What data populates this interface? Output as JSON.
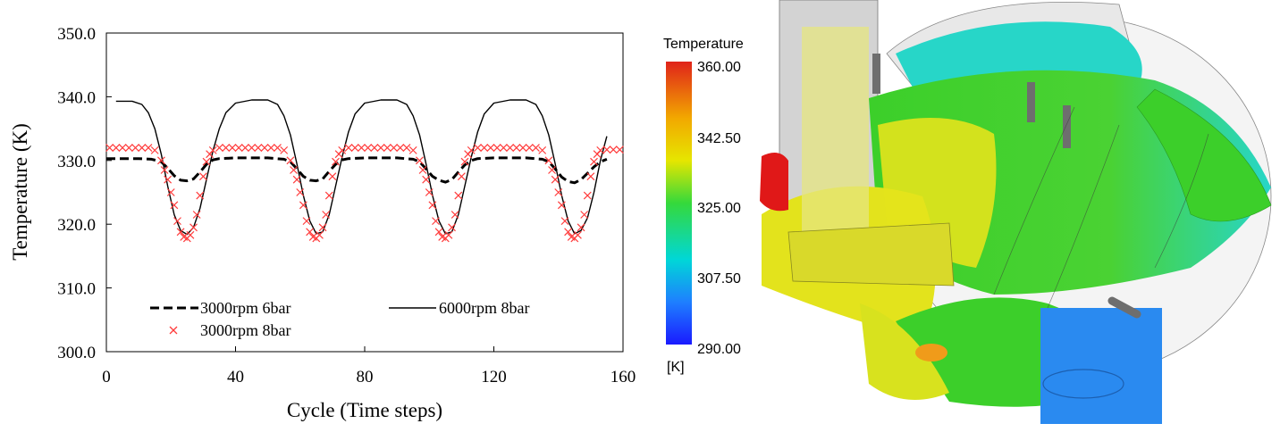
{
  "chart_data": {
    "type": "line",
    "title": "",
    "xlabel": "Cycle (Time steps)",
    "ylabel": "Temperature (K)",
    "xlim": [
      0,
      160
    ],
    "ylim": [
      300,
      350
    ],
    "x_ticks": [
      "0",
      "40",
      "80",
      "120",
      "160"
    ],
    "y_ticks": [
      "300.0",
      "310.0",
      "320.0",
      "330.0",
      "340.0",
      "350.0"
    ],
    "grid": false,
    "legend_position": "bottom",
    "series": [
      {
        "name": "3000rpm 6bar",
        "style": "dashed",
        "color": "#000000",
        "x": [
          0,
          5,
          10,
          14,
          17,
          19,
          21,
          23,
          25,
          27,
          29,
          31,
          33,
          35,
          40,
          50,
          55,
          57,
          59,
          61,
          63,
          65,
          67,
          69,
          71,
          73,
          75,
          80,
          90,
          95,
          97,
          99,
          101,
          103,
          105,
          107,
          109,
          111,
          113,
          115,
          120,
          130,
          135,
          137,
          139,
          141,
          143,
          145,
          147,
          149,
          151,
          153,
          155
        ],
        "y": [
          330.3,
          330.3,
          330.3,
          330.2,
          329.8,
          328.8,
          327.6,
          326.9,
          326.8,
          327.1,
          328.2,
          329.4,
          330.1,
          330.3,
          330.4,
          330.4,
          330.2,
          329.8,
          328.7,
          327.5,
          326.9,
          326.8,
          327.1,
          328.3,
          329.4,
          330.1,
          330.3,
          330.4,
          330.4,
          330.2,
          329.8,
          328.7,
          327.5,
          326.9,
          326.6,
          327.0,
          328.2,
          329.3,
          330.0,
          330.3,
          330.4,
          330.4,
          330.2,
          329.8,
          328.7,
          327.4,
          326.7,
          326.5,
          327.0,
          328.0,
          329.0,
          329.8,
          330.2
        ]
      },
      {
        "name": "6000rpm 8bar",
        "style": "solid",
        "color": "#000000",
        "x": [
          3,
          8,
          11,
          13,
          15,
          17,
          19,
          21,
          23,
          25,
          27,
          29,
          31,
          33,
          35,
          37,
          40,
          45,
          50,
          53,
          55,
          57,
          59,
          61,
          63,
          65,
          67,
          69,
          71,
          73,
          75,
          77,
          80,
          85,
          90,
          93,
          95,
          97,
          99,
          101,
          103,
          105,
          107,
          109,
          111,
          113,
          115,
          117,
          120,
          125,
          130,
          133,
          135,
          137,
          139,
          141,
          143,
          145,
          147,
          149,
          151,
          153,
          155
        ],
        "y": [
          339.3,
          339.3,
          338.8,
          337.5,
          335.0,
          331.0,
          326.0,
          321.5,
          319.0,
          318.4,
          319.5,
          322.5,
          327.0,
          331.5,
          335.0,
          337.5,
          339.0,
          339.5,
          339.5,
          338.8,
          337.0,
          334.0,
          329.5,
          324.5,
          320.5,
          318.5,
          318.8,
          321.5,
          326.0,
          330.5,
          334.5,
          337.3,
          339.0,
          339.5,
          339.5,
          338.8,
          337.0,
          334.0,
          329.5,
          324.5,
          320.5,
          318.5,
          318.8,
          321.5,
          326.0,
          330.5,
          334.5,
          337.3,
          339.0,
          339.5,
          339.5,
          338.8,
          337.0,
          334.0,
          329.5,
          324.5,
          320.5,
          318.5,
          319.0,
          321.0,
          325.0,
          330.0,
          333.8
        ]
      },
      {
        "name": "3000rpm 8bar",
        "style": "markers-x",
        "color": "#ff3b3b",
        "x": [
          1,
          3,
          5,
          7,
          9,
          11,
          13,
          15,
          17,
          18,
          19,
          20,
          21,
          22,
          23,
          24,
          25,
          26,
          27,
          28,
          29,
          30,
          31,
          32,
          33,
          35,
          37,
          39,
          41,
          43,
          45,
          47,
          49,
          51,
          53,
          55,
          57,
          58,
          59,
          60,
          61,
          62,
          63,
          64,
          65,
          66,
          67,
          68,
          69,
          70,
          71,
          72,
          73,
          75,
          77,
          79,
          81,
          83,
          85,
          87,
          89,
          91,
          93,
          95,
          97,
          98,
          99,
          100,
          101,
          102,
          103,
          104,
          105,
          106,
          107,
          108,
          109,
          110,
          111,
          112,
          113,
          115,
          117,
          119,
          121,
          123,
          125,
          127,
          129,
          131,
          133,
          135,
          137,
          138,
          139,
          140,
          141,
          142,
          143,
          144,
          145,
          146,
          147,
          148,
          149,
          150,
          151,
          152,
          153,
          155,
          157,
          159
        ],
        "y": [
          332.0,
          332.0,
          332.0,
          332.0,
          332.0,
          332.0,
          332.0,
          331.6,
          330.0,
          328.5,
          327.0,
          325.0,
          323.0,
          320.5,
          318.8,
          318.0,
          317.8,
          318.3,
          319.5,
          321.5,
          324.5,
          327.5,
          329.8,
          331.0,
          331.6,
          332.0,
          332.0,
          332.0,
          332.0,
          332.0,
          332.0,
          332.0,
          332.0,
          332.0,
          332.0,
          331.6,
          330.0,
          328.5,
          327.0,
          325.0,
          323.0,
          320.5,
          318.8,
          318.0,
          317.8,
          318.3,
          319.5,
          321.5,
          324.5,
          327.5,
          329.8,
          331.0,
          331.6,
          332.0,
          332.0,
          332.0,
          332.0,
          332.0,
          332.0,
          332.0,
          332.0,
          332.0,
          332.0,
          331.6,
          330.0,
          328.5,
          327.0,
          325.0,
          323.0,
          320.5,
          318.8,
          318.0,
          317.8,
          318.3,
          319.5,
          321.5,
          324.5,
          327.5,
          329.8,
          331.0,
          331.6,
          332.0,
          332.0,
          332.0,
          332.0,
          332.0,
          332.0,
          332.0,
          332.0,
          332.0,
          332.0,
          331.6,
          330.0,
          328.5,
          327.0,
          325.0,
          323.0,
          320.5,
          318.8,
          318.0,
          317.8,
          318.3,
          319.5,
          321.5,
          324.5,
          327.5,
          329.8,
          331.0,
          331.6,
          331.7,
          331.7,
          331.7
        ]
      }
    ]
  },
  "colorbar": {
    "title": "Temperature",
    "unit": "[K]",
    "labels": [
      "360.00",
      "342.50",
      "325.00",
      "307.50",
      "290.00"
    ],
    "colors": [
      "#e0231a",
      "#f2a800",
      "#e6e600",
      "#35d93b",
      "#00d7d7",
      "#1e7fff",
      "#1a1aff"
    ]
  },
  "cfd_colors": {
    "yellow": "#e3e31c",
    "green": "#3ccf2a",
    "cyan": "#27d6c8",
    "red": "#e01818",
    "orange": "#f09b1a",
    "blue": "#2a8af0",
    "gray": "#c8c8c8"
  }
}
